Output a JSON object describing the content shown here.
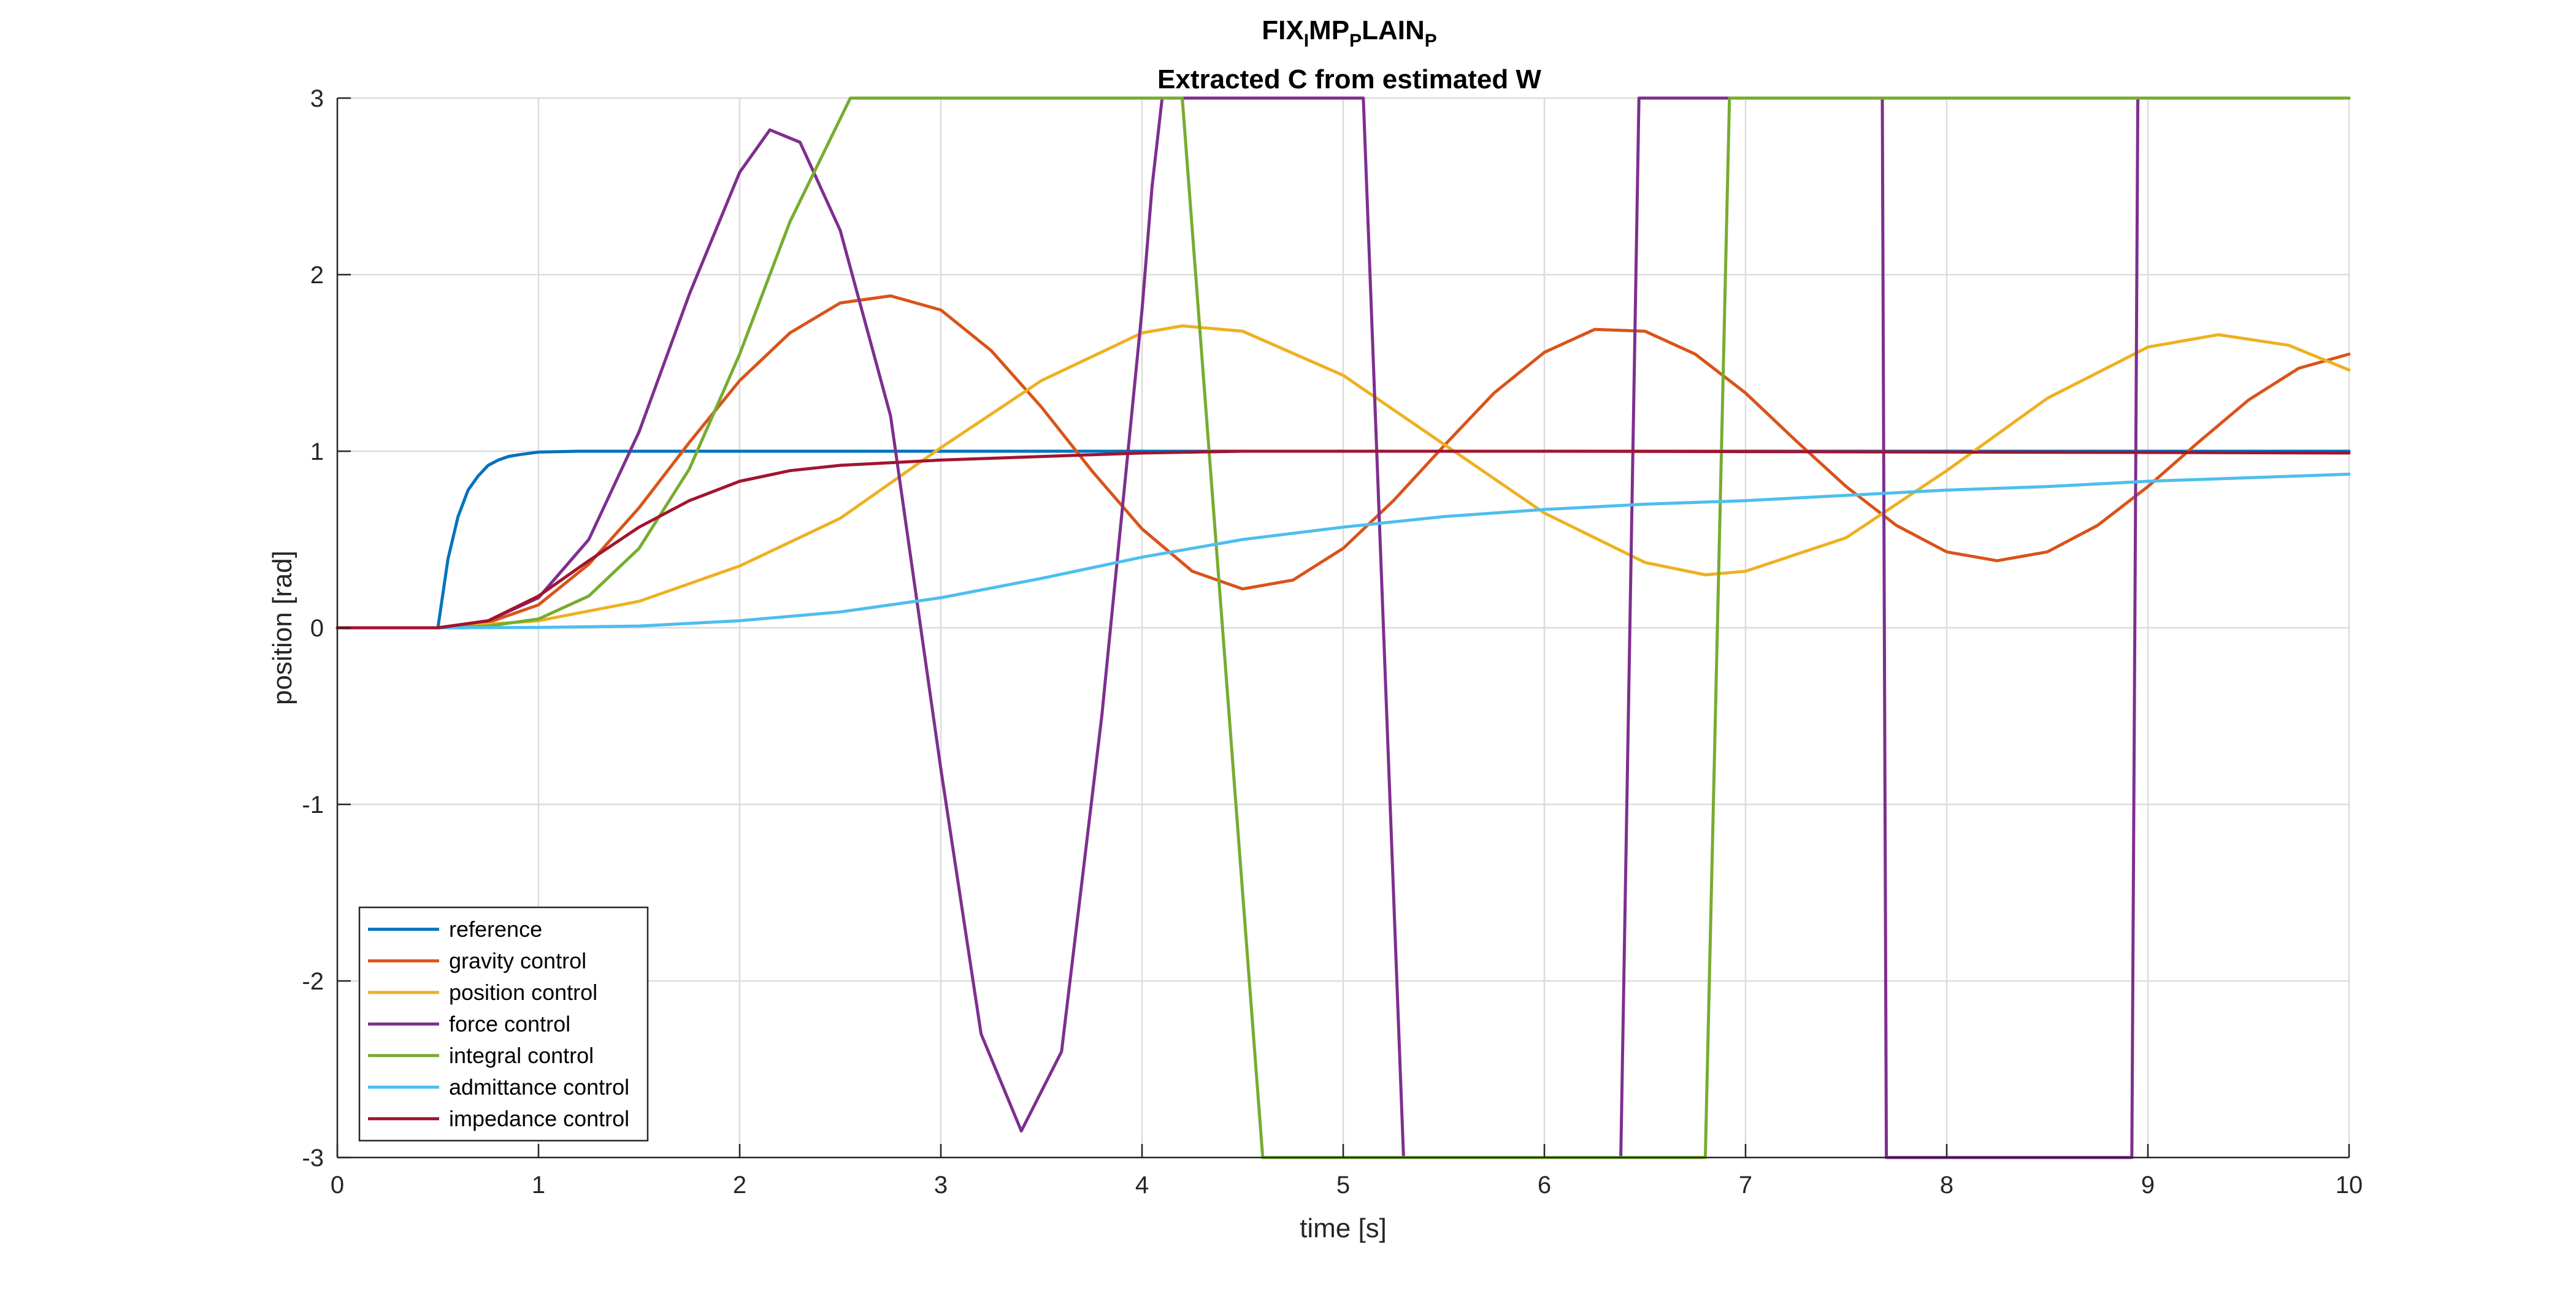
{
  "chart_data": {
    "type": "line",
    "title": {
      "segments": [
        {
          "text": "FIX",
          "sub": false
        },
        {
          "text": "I",
          "sub": true
        },
        {
          "text": "MP",
          "sub": false
        },
        {
          "text": "P",
          "sub": true
        },
        {
          "text": "LAIN",
          "sub": false
        },
        {
          "text": "P",
          "sub": true
        }
      ]
    },
    "subtitle": "Extracted C from estimated W",
    "xlabel": "time [s]",
    "ylabel": "position [rad]",
    "xlim": [
      0,
      10
    ],
    "ylim": [
      -3,
      3
    ],
    "xticks": [
      0,
      1,
      2,
      3,
      4,
      5,
      6,
      7,
      8,
      9,
      10
    ],
    "yticks": [
      -3,
      -2,
      -1,
      0,
      1,
      2,
      3
    ],
    "xtick_labels": [
      "0",
      "1",
      "2",
      "3",
      "4",
      "5",
      "6",
      "7",
      "8",
      "9",
      "10"
    ],
    "ytick_labels": [
      "-3",
      "-2",
      "-1",
      "0",
      "1",
      "2",
      "3"
    ],
    "grid": true,
    "legend_position": "bottom-left",
    "series": [
      {
        "name": "reference",
        "color": "#0072BD",
        "x": [
          0,
          0.5,
          0.55,
          0.6,
          0.65,
          0.7,
          0.75,
          0.8,
          0.85,
          0.9,
          1.0,
          1.2,
          1.5,
          2,
          3,
          4,
          5,
          6,
          7,
          8,
          9,
          10
        ],
        "y": [
          0,
          0,
          0.39,
          0.63,
          0.78,
          0.86,
          0.92,
          0.95,
          0.97,
          0.98,
          0.995,
          1.0,
          1.0,
          1.0,
          1.0,
          1.0,
          1.0,
          1.0,
          1.0,
          1.0,
          1.0,
          1.0
        ]
      },
      {
        "name": "gravity control",
        "color": "#D95319",
        "x": [
          0,
          0.5,
          0.75,
          1.0,
          1.25,
          1.5,
          1.75,
          2.0,
          2.25,
          2.5,
          2.75,
          3.0,
          3.25,
          3.5,
          3.75,
          4.0,
          4.25,
          4.5,
          4.75,
          5.0,
          5.25,
          5.5,
          5.75,
          6.0,
          6.25,
          6.5,
          6.75,
          7.0,
          7.25,
          7.5,
          7.75,
          8.0,
          8.25,
          8.5,
          8.75,
          9.0,
          9.25,
          9.5,
          9.75,
          10.0
        ],
        "y": [
          0,
          0,
          0.03,
          0.13,
          0.36,
          0.68,
          1.05,
          1.4,
          1.67,
          1.84,
          1.88,
          1.8,
          1.57,
          1.25,
          0.89,
          0.56,
          0.32,
          0.22,
          0.27,
          0.45,
          0.72,
          1.03,
          1.33,
          1.56,
          1.69,
          1.68,
          1.55,
          1.33,
          1.06,
          0.8,
          0.58,
          0.43,
          0.38,
          0.43,
          0.58,
          0.8,
          1.05,
          1.29,
          1.47,
          1.55
        ]
      },
      {
        "name": "position control",
        "color": "#EDB120",
        "x": [
          0,
          0.5,
          1.0,
          1.5,
          2.0,
          2.5,
          3.0,
          3.5,
          4.0,
          4.2,
          4.5,
          5.0,
          5.5,
          6.0,
          6.5,
          6.8,
          7.0,
          7.5,
          8.0,
          8.5,
          9.0,
          9.35,
          9.7,
          10.0
        ],
        "y": [
          0,
          0,
          0.04,
          0.15,
          0.35,
          0.62,
          1.02,
          1.4,
          1.67,
          1.71,
          1.68,
          1.43,
          1.04,
          0.65,
          0.37,
          0.3,
          0.32,
          0.51,
          0.89,
          1.3,
          1.59,
          1.66,
          1.6,
          1.46
        ]
      },
      {
        "name": "force control",
        "color": "#7E2F8E",
        "x": [
          0,
          0.5,
          0.75,
          1.0,
          1.25,
          1.5,
          1.75,
          2.0,
          2.15,
          2.3,
          2.5,
          2.75,
          3.0,
          3.2,
          3.4,
          3.6,
          3.8,
          4.0,
          4.05,
          4.1,
          5.1,
          5.3,
          5.31,
          6.38,
          6.47,
          6.48,
          7.68,
          7.7,
          7.71,
          8.92,
          8.95,
          10.0
        ],
        "y": [
          0,
          0,
          0.04,
          0.17,
          0.5,
          1.11,
          1.89,
          2.58,
          2.82,
          2.75,
          2.25,
          1.2,
          -0.8,
          -2.3,
          -2.85,
          -2.4,
          -0.5,
          1.8,
          2.5,
          3.0,
          3.0,
          -3.0,
          -3.0,
          -3.0,
          3.0,
          3.0,
          3.0,
          -3.0,
          -3.0,
          -3.0,
          3.0,
          3.0
        ]
      },
      {
        "name": "integral control",
        "color": "#77AC30",
        "x": [
          0,
          0.5,
          0.75,
          1.0,
          1.25,
          1.5,
          1.75,
          2.0,
          2.25,
          2.55,
          4.2,
          4.6,
          6.8,
          6.92,
          10.0
        ],
        "y": [
          0,
          0,
          0.01,
          0.05,
          0.18,
          0.45,
          0.9,
          1.55,
          2.3,
          3.0,
          3.0,
          -3.0,
          -3.0,
          3.0,
          3.0
        ]
      },
      {
        "name": "admittance control",
        "color": "#4DBEEE",
        "x": [
          0,
          0.5,
          1.0,
          1.5,
          2.0,
          2.5,
          3.0,
          3.5,
          4.0,
          4.5,
          5.0,
          5.5,
          6.0,
          6.5,
          7.0,
          7.5,
          8.0,
          8.5,
          9.0,
          9.5,
          10.0
        ],
        "y": [
          0,
          0,
          0.002,
          0.01,
          0.04,
          0.09,
          0.17,
          0.28,
          0.4,
          0.5,
          0.57,
          0.63,
          0.67,
          0.7,
          0.72,
          0.75,
          0.78,
          0.8,
          0.83,
          0.85,
          0.87
        ]
      },
      {
        "name": "impedance control",
        "color": "#A2142F",
        "x": [
          0,
          0.5,
          0.75,
          1.0,
          1.25,
          1.5,
          1.75,
          2.0,
          2.25,
          2.5,
          3.0,
          3.5,
          4.0,
          4.5,
          5.0,
          6.0,
          7.0,
          8.0,
          9.0,
          10.0
        ],
        "y": [
          0,
          0,
          0.04,
          0.18,
          0.38,
          0.57,
          0.72,
          0.83,
          0.89,
          0.92,
          0.95,
          0.97,
          0.99,
          1.0,
          1.0,
          1.0,
          0.998,
          0.995,
          0.993,
          0.99
        ]
      }
    ]
  }
}
